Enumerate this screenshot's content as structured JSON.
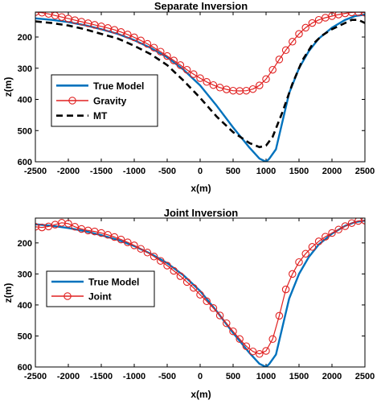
{
  "chart_data": [
    {
      "type": "line",
      "title": "Separate Inversion",
      "xlabel": "x(m)",
      "ylabel": "z(m)",
      "xlim": [
        -2500,
        2500
      ],
      "ylim": [
        600,
        120
      ],
      "y_reversed": true,
      "xticks": [
        -2500,
        -2000,
        -1500,
        -1000,
        -500,
        0,
        500,
        1000,
        1500,
        2000,
        2500
      ],
      "yticks": [
        200,
        300,
        400,
        500,
        600
      ],
      "legend_position": "bottom-left",
      "series": [
        {
          "name": "True Model",
          "color": "#0072BD",
          "style": "solid",
          "marker": "none",
          "x": [
            -2500,
            -2250,
            -2000,
            -1750,
            -1500,
            -1250,
            -1000,
            -750,
            -500,
            -250,
            0,
            250,
            500,
            750,
            900,
            1000,
            1050,
            1150,
            1250,
            1350,
            1500,
            1650,
            1800,
            2000,
            2200,
            2350,
            2500
          ],
          "y": [
            140,
            145,
            152,
            162,
            175,
            190,
            210,
            235,
            265,
            305,
            355,
            420,
            490,
            555,
            590,
            600,
            590,
            560,
            470,
            380,
            300,
            245,
            205,
            170,
            145,
            133,
            128
          ]
        },
        {
          "name": "Gravity",
          "color": "#E02020",
          "style": "solid",
          "marker": "circle",
          "x": [
            -2500,
            -2400,
            -2300,
            -2200,
            -2100,
            -2000,
            -1900,
            -1800,
            -1700,
            -1600,
            -1500,
            -1400,
            -1300,
            -1200,
            -1100,
            -1000,
            -900,
            -800,
            -700,
            -600,
            -500,
            -400,
            -300,
            -200,
            -100,
            0,
            100,
            200,
            300,
            400,
            500,
            600,
            700,
            800,
            900,
            1000,
            1100,
            1200,
            1300,
            1400,
            1500,
            1600,
            1700,
            1800,
            1900,
            2000,
            2100,
            2200,
            2300,
            2400,
            2500
          ],
          "y": [
            120,
            122,
            126,
            131,
            136,
            141,
            146,
            151,
            156,
            161,
            166,
            171,
            177,
            184,
            192,
            201,
            211,
            222,
            234,
            247,
            261,
            275,
            290,
            305,
            319,
            332,
            344,
            354,
            362,
            368,
            372,
            373,
            372,
            367,
            355,
            335,
            305,
            272,
            242,
            215,
            190,
            170,
            155,
            145,
            138,
            133,
            128,
            124,
            121,
            120,
            122
          ]
        },
        {
          "name": "MT",
          "color": "#000000",
          "style": "dashed",
          "marker": "none",
          "x": [
            -2500,
            -2250,
            -2000,
            -1750,
            -1500,
            -1250,
            -1000,
            -750,
            -500,
            -250,
            0,
            250,
            500,
            750,
            900,
            1000,
            1100,
            1250,
            1400,
            1550,
            1700,
            1850,
            2000,
            2150,
            2300,
            2400,
            2500
          ],
          "y": [
            150,
            155,
            163,
            175,
            190,
            205,
            228,
            255,
            290,
            340,
            395,
            455,
            505,
            540,
            553,
            548,
            520,
            440,
            350,
            275,
            225,
            195,
            175,
            160,
            145,
            145,
            155
          ]
        }
      ]
    },
    {
      "type": "line",
      "title": "Joint Inversion",
      "xlabel": "x(m)",
      "ylabel": "z(m)",
      "xlim": [
        -2500,
        2500
      ],
      "ylim": [
        600,
        120
      ],
      "y_reversed": true,
      "xticks": [
        -2500,
        -2000,
        -1500,
        -1000,
        -500,
        0,
        500,
        1000,
        1500,
        2000,
        2500
      ],
      "yticks": [
        200,
        300,
        400,
        500,
        600
      ],
      "legend_position": "bottom-left",
      "series": [
        {
          "name": "True Model",
          "color": "#0072BD",
          "style": "solid",
          "marker": "none",
          "x": [
            -2500,
            -2250,
            -2000,
            -1750,
            -1500,
            -1250,
            -1000,
            -750,
            -500,
            -250,
            0,
            250,
            500,
            750,
            900,
            1000,
            1050,
            1150,
            1250,
            1350,
            1500,
            1650,
            1800,
            2000,
            2200,
            2350,
            2500
          ],
          "y": [
            140,
            145,
            152,
            162,
            175,
            190,
            210,
            235,
            265,
            305,
            355,
            420,
            490,
            555,
            590,
            600,
            590,
            560,
            470,
            380,
            300,
            245,
            205,
            170,
            145,
            133,
            128
          ]
        },
        {
          "name": "Joint",
          "color": "#E02020",
          "style": "solid",
          "marker": "circle",
          "x": [
            -2500,
            -2400,
            -2300,
            -2200,
            -2100,
            -2000,
            -1900,
            -1800,
            -1700,
            -1600,
            -1500,
            -1400,
            -1300,
            -1200,
            -1100,
            -1000,
            -900,
            -800,
            -700,
            -600,
            -500,
            -400,
            -300,
            -200,
            -100,
            0,
            100,
            200,
            300,
            400,
            500,
            600,
            700,
            800,
            900,
            1000,
            1100,
            1200,
            1300,
            1400,
            1500,
            1600,
            1700,
            1800,
            1900,
            2000,
            2100,
            2200,
            2300,
            2400,
            2500
          ],
          "y": [
            148,
            150,
            147,
            141,
            135,
            138,
            148,
            155,
            160,
            163,
            168,
            174,
            181,
            189,
            198,
            208,
            219,
            231,
            244,
            258,
            273,
            290,
            307,
            326,
            345,
            367,
            388,
            410,
            434,
            459,
            485,
            510,
            533,
            550,
            558,
            548,
            510,
            435,
            350,
            300,
            262,
            235,
            213,
            195,
            180,
            168,
            157,
            146,
            136,
            129,
            128
          ]
        }
      ]
    }
  ]
}
